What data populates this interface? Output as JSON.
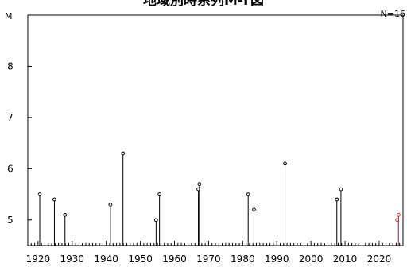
{
  "chart_data": {
    "type": "stem",
    "title": "地域別時系列M-T図",
    "count_label": "N=16",
    "ylabel": "M",
    "xlim": [
      1917,
      2027
    ],
    "ylim": [
      4.5,
      9.0
    ],
    "x_ticks": [
      1920,
      1930,
      1940,
      1950,
      1960,
      1970,
      1980,
      1990,
      2000,
      2010,
      2020
    ],
    "y_ticks": [
      5,
      6,
      7,
      8
    ],
    "grid": false,
    "colors": {
      "stem": "#000000",
      "recent": "#e03030"
    },
    "series": [
      {
        "points": [
          {
            "x": 1920.5,
            "y": 5.5
          },
          {
            "x": 1924.8,
            "y": 5.4
          },
          {
            "x": 1927.9,
            "y": 5.1
          },
          {
            "x": 1941.2,
            "y": 5.3
          },
          {
            "x": 1944.9,
            "y": 6.3
          },
          {
            "x": 1954.6,
            "y": 5.0
          },
          {
            "x": 1955.6,
            "y": 5.5
          },
          {
            "x": 1967.0,
            "y": 5.6
          },
          {
            "x": 1967.3,
            "y": 5.7
          },
          {
            "x": 1981.6,
            "y": 5.5
          },
          {
            "x": 1983.3,
            "y": 5.2
          },
          {
            "x": 1992.4,
            "y": 6.1
          },
          {
            "x": 2007.6,
            "y": 5.4
          },
          {
            "x": 2008.8,
            "y": 5.6
          },
          {
            "x": 2025.3,
            "y": 5.0,
            "recent": true
          },
          {
            "x": 2025.7,
            "y": 5.1,
            "recent": true
          }
        ]
      }
    ]
  }
}
